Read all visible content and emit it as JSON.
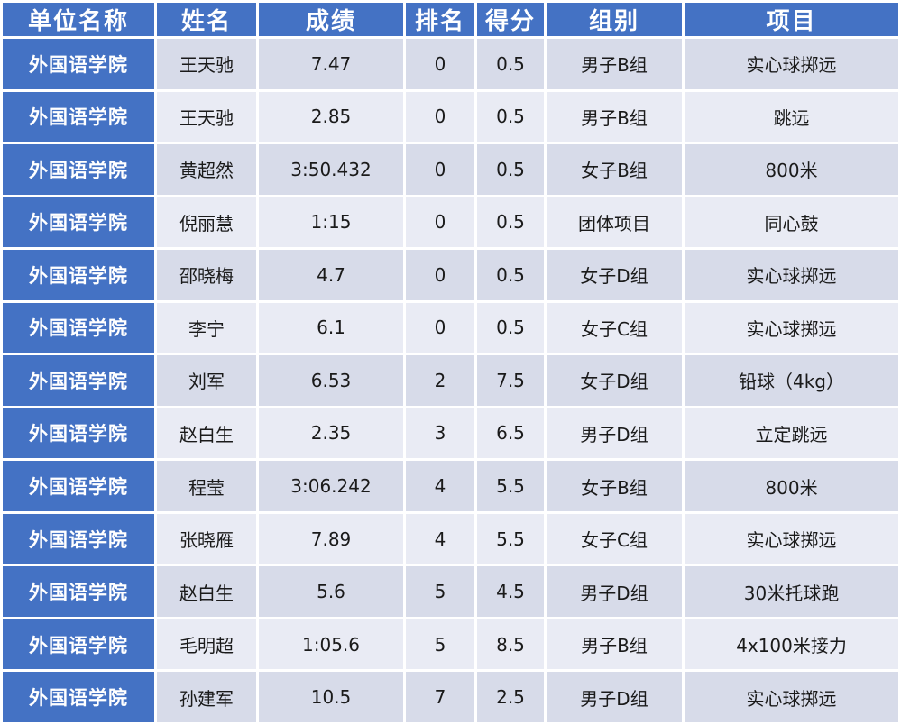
{
  "table": {
    "columns": [
      {
        "key": "unit",
        "label": "单位名称"
      },
      {
        "key": "name",
        "label": "姓名"
      },
      {
        "key": "score",
        "label": "成绩"
      },
      {
        "key": "rank",
        "label": "排名"
      },
      {
        "key": "points",
        "label": "得分"
      },
      {
        "key": "group",
        "label": "组别"
      },
      {
        "key": "event",
        "label": "项目"
      }
    ],
    "rows": [
      [
        "外国语学院",
        "王天驰",
        "7.47",
        "0",
        "0.5",
        "男子B组",
        "实心球掷远"
      ],
      [
        "外国语学院",
        "王天驰",
        "2.85",
        "0",
        "0.5",
        "男子B组",
        "跳远"
      ],
      [
        "外国语学院",
        "黄超然",
        "3:50.432",
        "0",
        "0.5",
        "女子B组",
        "800米"
      ],
      [
        "外国语学院",
        "倪丽慧",
        "1:15",
        "0",
        "0.5",
        "团体项目",
        "同心鼓"
      ],
      [
        "外国语学院",
        "邵晓梅",
        "4.7",
        "0",
        "0.5",
        "女子D组",
        "实心球掷远"
      ],
      [
        "外国语学院",
        "李宁",
        "6.1",
        "0",
        "0.5",
        "女子C组",
        "实心球掷远"
      ],
      [
        "外国语学院",
        "刘军",
        "6.53",
        "2",
        "7.5",
        "女子D组",
        "铅球（4kg）"
      ],
      [
        "外国语学院",
        "赵白生",
        "2.35",
        "3",
        "6.5",
        "男子D组",
        "立定跳远"
      ],
      [
        "外国语学院",
        "程莹",
        "3:06.242",
        "4",
        "5.5",
        "女子B组",
        "800米"
      ],
      [
        "外国语学院",
        "张晓雁",
        "7.89",
        "4",
        "5.5",
        "女子C组",
        "实心球掷远"
      ],
      [
        "外国语学院",
        "赵白生",
        "5.6",
        "5",
        "4.5",
        "男子D组",
        "30米托球跑"
      ],
      [
        "外国语学院",
        "毛明超",
        "1:05.6",
        "5",
        "8.5",
        "男子B组",
        "4x100米接力"
      ],
      [
        "外国语学院",
        "孙建军",
        "10.5",
        "7",
        "2.5",
        "男子D组",
        "实心球掷远"
      ]
    ]
  },
  "colors": {
    "header_bg": "#4472C4",
    "unit_column_bg": "#4472C4",
    "row_odd_bg": "#D7DBE9",
    "row_even_bg": "#E9EBF4",
    "header_text": "#FFFFFF",
    "cell_text": "#1A1A1A",
    "gridline": "#FFFFFF"
  }
}
